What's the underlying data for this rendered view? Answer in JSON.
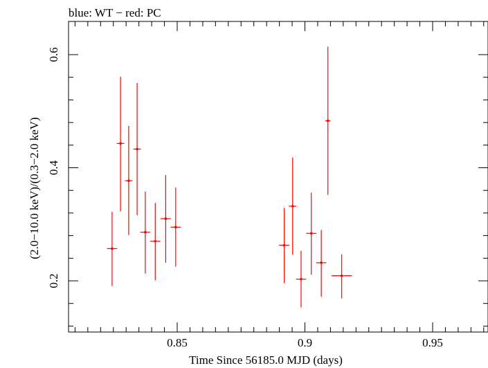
{
  "chart_data": {
    "type": "scatter",
    "title": "blue: WT − red: PC",
    "xlabel": "Time Since 56185.0 MJD (days)",
    "ylabel": "(2.0−10.0 keV)/(0.3−2.0 keV)",
    "xlim": [
      0.808,
      0.97
    ],
    "ylim": [
      0.12,
      0.65
    ],
    "xticks": [
      0.85,
      0.9,
      0.95
    ],
    "xtick_labels": [
      "0.85",
      "0.9",
      "0.95"
    ],
    "yticks": [
      0.2,
      0.4,
      0.6
    ],
    "ytick_labels": [
      "0.2",
      "0.4",
      "0.6"
    ],
    "series": [
      {
        "name": "PC",
        "color": "#ff0000",
        "points": [
          {
            "x": 0.8245,
            "xerr": 0.002,
            "y": 0.257,
            "yerr_lo": 0.066,
            "yerr_hi": 0.065
          },
          {
            "x": 0.8278,
            "xerr": 0.0015,
            "y": 0.443,
            "yerr_lo": 0.12,
            "yerr_hi": 0.118
          },
          {
            "x": 0.831,
            "xerr": 0.0015,
            "y": 0.377,
            "yerr_lo": 0.096,
            "yerr_hi": 0.097
          },
          {
            "x": 0.8343,
            "xerr": 0.0015,
            "y": 0.433,
            "yerr_lo": 0.117,
            "yerr_hi": 0.117
          },
          {
            "x": 0.8375,
            "xerr": 0.002,
            "y": 0.286,
            "yerr_lo": 0.073,
            "yerr_hi": 0.072
          },
          {
            "x": 0.8414,
            "xerr": 0.002,
            "y": 0.27,
            "yerr_lo": 0.069,
            "yerr_hi": 0.068
          },
          {
            "x": 0.8455,
            "xerr": 0.002,
            "y": 0.31,
            "yerr_lo": 0.078,
            "yerr_hi": 0.077
          },
          {
            "x": 0.8494,
            "xerr": 0.002,
            "y": 0.295,
            "yerr_lo": 0.07,
            "yerr_hi": 0.07
          },
          {
            "x": 0.8919,
            "xerr": 0.002,
            "y": 0.263,
            "yerr_lo": 0.067,
            "yerr_hi": 0.066
          },
          {
            "x": 0.8952,
            "xerr": 0.0015,
            "y": 0.332,
            "yerr_lo": 0.086,
            "yerr_hi": 0.086
          },
          {
            "x": 0.8985,
            "xerr": 0.002,
            "y": 0.203,
            "yerr_lo": 0.05,
            "yerr_hi": 0.05
          },
          {
            "x": 0.9025,
            "xerr": 0.002,
            "y": 0.284,
            "yerr_lo": 0.073,
            "yerr_hi": 0.072
          },
          {
            "x": 0.9064,
            "xerr": 0.002,
            "y": 0.232,
            "yerr_lo": 0.06,
            "yerr_hi": 0.058
          },
          {
            "x": 0.909,
            "xerr": 0.001,
            "y": 0.483,
            "yerr_lo": 0.131,
            "yerr_hi": 0.131
          },
          {
            "x": 0.9144,
            "xerr": 0.004,
            "y": 0.209,
            "yerr_lo": 0.04,
            "yerr_hi": 0.038
          }
        ]
      }
    ]
  }
}
